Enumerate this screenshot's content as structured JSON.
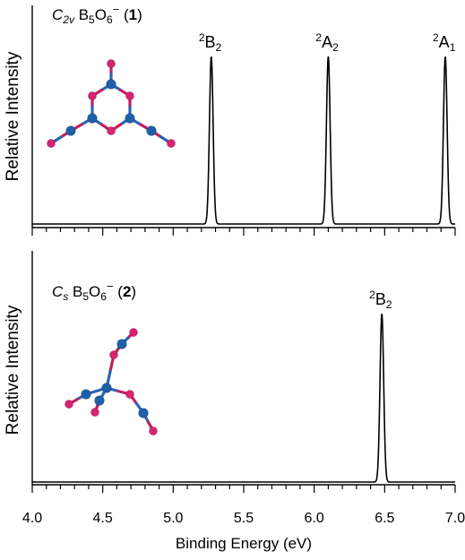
{
  "chart_data": [
    {
      "type": "line",
      "title_html": "<tspan font-style='italic'>C</tspan><tspan font-style='italic' class='sub' dy='4'>2v</tspan><tspan dy='-4'> B</tspan><tspan class='sub' dy='4'>5</tspan><tspan dy='-4'>O</tspan><tspan class='sub' dy='4'>6</tspan><tspan dy='-11' font-size='13'>−</tspan><tspan dy='7'> (</tspan><tspan font-weight='bold'>1</tspan><tspan>)</tspan>",
      "ylabel": "Relative  Intensity",
      "xlim": [
        4.0,
        7.0
      ],
      "y_ticks_visible": false,
      "peaks": [
        {
          "center": 5.27,
          "height": 1.0,
          "width": 0.013,
          "label_sup": "2",
          "label_main": "B",
          "label_sub": "2"
        },
        {
          "center": 6.1,
          "height": 1.0,
          "width": 0.013,
          "label_sup": "2",
          "label_main": "A",
          "label_sub": "2"
        },
        {
          "center": 6.93,
          "height": 1.0,
          "width": 0.013,
          "label_sup": "2",
          "label_main": "A",
          "label_sub": "1"
        }
      ]
    },
    {
      "type": "line",
      "title_html": "<tspan font-style='italic'>C</tspan><tspan font-style='italic' class='sub' dy='4'>s</tspan><tspan dy='-4'> B</tspan><tspan class='sub' dy='4'>5</tspan><tspan dy='-4'>O</tspan><tspan class='sub' dy='4'>6</tspan><tspan dy='-11' font-size='13'>−</tspan><tspan dy='7'> (</tspan><tspan font-weight='bold'>2</tspan><tspan>)</tspan>",
      "ylabel": "Relative  Intensity",
      "xlim": [
        4.0,
        7.0
      ],
      "y_ticks_visible": false,
      "xlabel": "Binding Energy (eV)",
      "x_tick_labels": [
        "4.0",
        "4.5",
        "5.0",
        "5.5",
        "6.0",
        "6.5",
        "7.0"
      ],
      "peaks": [
        {
          "center": 6.48,
          "height": 1.0,
          "width": 0.013,
          "label_sup": "2",
          "label_main": "B",
          "label_sub": "2"
        }
      ]
    }
  ],
  "colors": {
    "oxygen": "#d8236e",
    "boron": "#1f5fa8",
    "bond_o": "#c02060",
    "bond_b": "#2a66b3",
    "axis": "#000000"
  }
}
